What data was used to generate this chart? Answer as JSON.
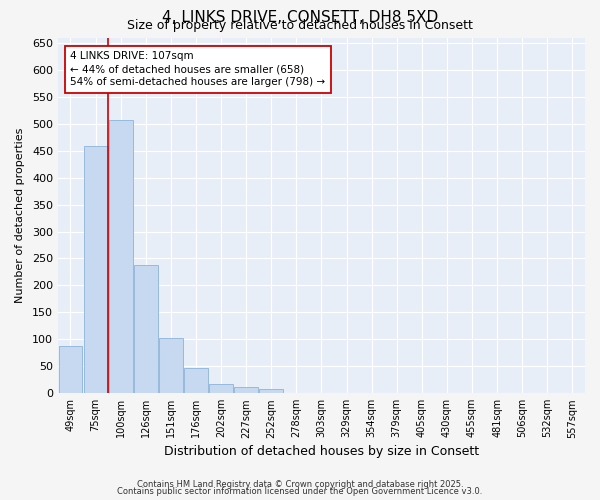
{
  "title_line1": "4, LINKS DRIVE, CONSETT, DH8 5XD",
  "title_line2": "Size of property relative to detached houses in Consett",
  "xlabel": "Distribution of detached houses by size in Consett",
  "ylabel": "Number of detached properties",
  "categories": [
    "49sqm",
    "75sqm",
    "100sqm",
    "126sqm",
    "151sqm",
    "176sqm",
    "202sqm",
    "227sqm",
    "252sqm",
    "278sqm",
    "303sqm",
    "329sqm",
    "354sqm",
    "379sqm",
    "405sqm",
    "430sqm",
    "455sqm",
    "481sqm",
    "506sqm",
    "532sqm",
    "557sqm"
  ],
  "values": [
    88,
    458,
    507,
    238,
    103,
    47,
    17,
    12,
    8,
    1,
    0,
    0,
    0,
    0,
    1,
    0,
    0,
    1,
    0,
    0,
    1
  ],
  "bar_color": "#c6d9f1",
  "bar_edge_color": "#8ab4d8",
  "red_line_color": "#cc0000",
  "annotation_line1": "4 LINKS DRIVE: 107sqm",
  "annotation_line2": "← 44% of detached houses are smaller (658)",
  "annotation_line3": "54% of semi-detached houses are larger (798) →",
  "annotation_box_color": "white",
  "annotation_box_edge": "#cc0000",
  "ylim": [
    0,
    660
  ],
  "yticks": [
    0,
    50,
    100,
    150,
    200,
    250,
    300,
    350,
    400,
    450,
    500,
    550,
    600,
    650
  ],
  "footer_line1": "Contains HM Land Registry data © Crown copyright and database right 2025.",
  "footer_line2": "Contains public sector information licensed under the Open Government Licence v3.0.",
  "bg_color": "#f5f5f5",
  "plot_bg_color": "#e8eef8"
}
